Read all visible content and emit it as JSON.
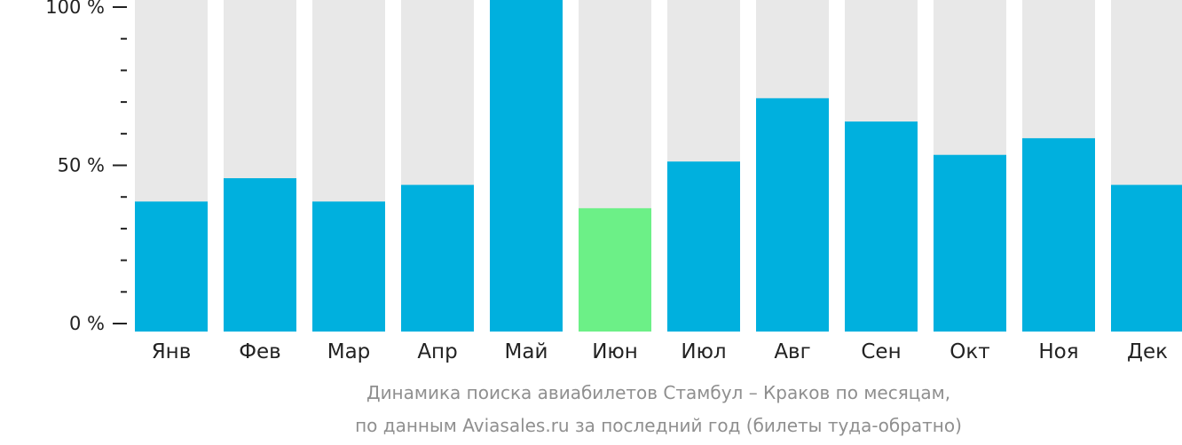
{
  "chart_data": {
    "type": "bar",
    "categories": [
      "Янв",
      "Фев",
      "Мар",
      "Апр",
      "Май",
      "Июн",
      "Июл",
      "Авг",
      "Сен",
      "Окт",
      "Ноя",
      "Дек"
    ],
    "values": [
      39,
      46,
      39,
      44,
      100,
      37,
      51,
      70,
      63,
      53,
      58,
      44
    ],
    "highlight_index": 5,
    "ylim": [
      0,
      100
    ],
    "y_ticks": [
      {
        "value": 0,
        "label": "0 %"
      },
      {
        "value": 50,
        "label": "50 %"
      },
      {
        "value": 100,
        "label": "100 %"
      }
    ],
    "minor_tick_step": 10,
    "colors": {
      "bar": "#00b0de",
      "highlight": "#6cf087",
      "background_bar": "#e8e8e8",
      "axis_text": "#222222",
      "caption": "#8f8f8f"
    },
    "grid": false,
    "legend": "none"
  },
  "caption": {
    "line1": "Динамика поиска авиабилетов Стамбул – Краков по месяцам,",
    "line2": "по данным Aviasales.ru за последний год (билеты туда-обратно)"
  }
}
